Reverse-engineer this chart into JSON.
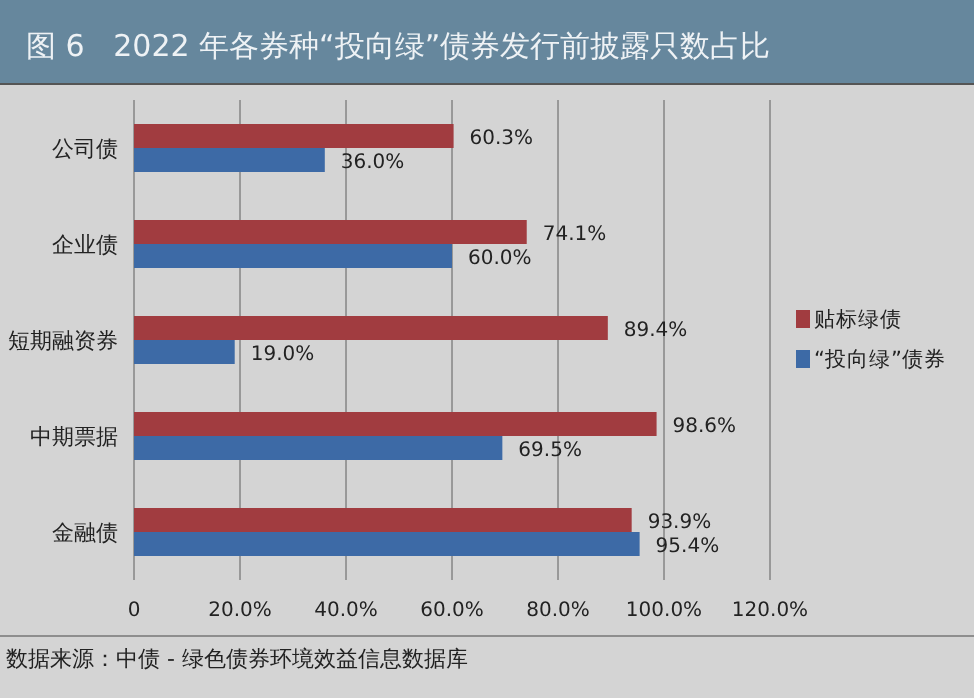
{
  "chart_data": {
    "type": "bar",
    "orientation": "horizontal",
    "title": "图 6   2022 年各券种“投向绿”债券发行前披露只数占比",
    "categories": [
      "公司债",
      "企业债",
      "短期融资券",
      "中期票据",
      "金融债"
    ],
    "series": [
      {
        "name": "贴标绿债",
        "color": "#a13c40",
        "values": [
          60.3,
          74.1,
          89.4,
          98.6,
          93.9
        ],
        "value_labels": [
          "60.3%",
          "74.1%",
          "89.4%",
          "98.6%",
          "93.9%"
        ]
      },
      {
        "name": "“投向绿”债券",
        "color": "#3d6aa6",
        "values": [
          36.0,
          60.0,
          19.0,
          69.5,
          95.4
        ],
        "value_labels": [
          "36.0%",
          "60.0%",
          "19.0%",
          "69.5%",
          "95.4%"
        ]
      }
    ],
    "xlim": [
      0,
      120
    ],
    "xticks": [
      {
        "value": 0,
        "label": "0"
      },
      {
        "value": 20,
        "label": "20.0%"
      },
      {
        "value": 40,
        "label": "40.0%"
      },
      {
        "value": 60,
        "label": "60.0%"
      },
      {
        "value": 80,
        "label": "80.0%"
      },
      {
        "value": 100,
        "label": "100.0%"
      },
      {
        "value": 120,
        "label": "120.0%"
      }
    ],
    "grid": "x",
    "legend": "right",
    "annotations": [
      "数据来源：中债 - 绿色债券环境效益信息数据库"
    ]
  }
}
